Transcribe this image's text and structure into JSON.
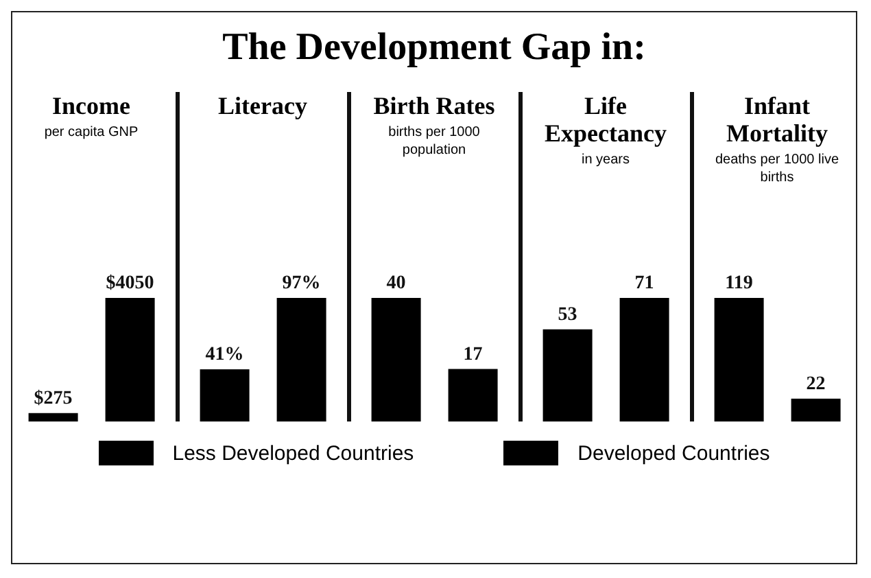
{
  "chart_data": [
    {
      "type": "bar",
      "title": "Income",
      "subtitle": "per capita GNP",
      "annotations": [
        "The Development Gap in:"
      ],
      "categories": [
        null
      ],
      "series": [
        {
          "name": "Less Developed Countries",
          "color": "#000000",
          "values": [
            275
          ],
          "value_labels": [
            "$275"
          ]
        },
        {
          "name": "Developed Countries",
          "color": "#000000",
          "values": [
            4050
          ],
          "value_labels": [
            "$4050"
          ]
        }
      ],
      "legend": "bottom"
    },
    {
      "type": "bar",
      "title": "Literacy",
      "categories": [
        null
      ],
      "series": [
        {
          "color": "#000000",
          "values": [
            41
          ],
          "value_labels": [
            "41%"
          ]
        },
        {
          "color": "#000000",
          "values": [
            97
          ],
          "value_labels": [
            "97%"
          ]
        }
      ]
    },
    {
      "type": "bar",
      "title": "Birth Rates",
      "subtitle": "births per 1000 population",
      "categories": [
        null
      ],
      "series": [
        {
          "color": "#000000",
          "values": [
            40
          ],
          "value_labels": [
            "40"
          ]
        },
        {
          "color": "#000000",
          "values": [
            17
          ],
          "value_labels": [
            "17"
          ]
        }
      ]
    },
    {
      "type": "bar",
      "title": "Life Expectancy",
      "subtitle": "in years",
      "categories": [
        null
      ],
      "series": [
        {
          "color": "#000000",
          "values": [
            53
          ],
          "value_labels": [
            "53"
          ]
        },
        {
          "color": "#000000",
          "values": [
            71
          ],
          "value_labels": [
            "71"
          ]
        }
      ]
    },
    {
      "type": "bar",
      "title": "Infant Mortality",
      "subtitle": "deaths per 1000 live births",
      "categories": [
        null
      ],
      "series": [
        {
          "color": "#000000",
          "values": [
            119
          ],
          "value_labels": [
            "119"
          ]
        },
        {
          "color": "#000000",
          "values": [
            22
          ],
          "value_labels": [
            "22"
          ]
        }
      ]
    }
  ]
}
